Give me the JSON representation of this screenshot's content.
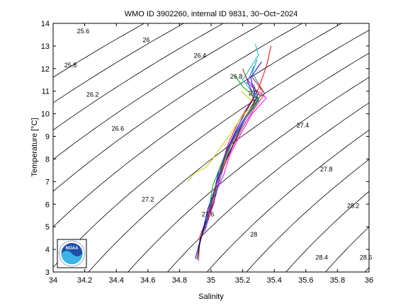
{
  "chart_data": {
    "type": "scatter",
    "title": "WMO ID 3902260, internal ID 9831, 30−Oct−2024",
    "xlabel": "Salinity",
    "ylabel": "Temperature [°C]",
    "xlim": [
      34,
      36
    ],
    "ylim": [
      3,
      14
    ],
    "x_ticks": [
      "34",
      "34.2",
      "34.4",
      "34.6",
      "34.8",
      "35",
      "35.2",
      "35.4",
      "35.6",
      "35.8",
      "36"
    ],
    "y_ticks": [
      "3",
      "4",
      "5",
      "6",
      "7",
      "8",
      "9",
      "10",
      "11",
      "12",
      "13",
      "14"
    ],
    "grid": false,
    "density_contours": {
      "levels": [
        25.6,
        25.8,
        26,
        26.2,
        26.4,
        26.6,
        26.8,
        27,
        27.2,
        27.4,
        27.6,
        27.8,
        28,
        28.2,
        28.4,
        28.6
      ],
      "labels": [
        {
          "text": "25.6",
          "s": 34.19,
          "t": 13.65
        },
        {
          "text": "25.8",
          "s": 34.11,
          "t": 12.15
        },
        {
          "text": "26",
          "s": 34.59,
          "t": 13.27
        },
        {
          "text": "26.2",
          "s": 34.25,
          "t": 10.85
        },
        {
          "text": "26.4",
          "s": 34.93,
          "t": 12.57
        },
        {
          "text": "26.6",
          "s": 34.41,
          "t": 9.35
        },
        {
          "text": "26.8",
          "s": 35.16,
          "t": 11.65
        },
        {
          "text": "27",
          "s": 35.26,
          "t": 10.91
        },
        {
          "text": "27.2",
          "s": 34.6,
          "t": 6.21
        },
        {
          "text": "27.4",
          "s": 35.58,
          "t": 9.48
        },
        {
          "text": "27.6",
          "s": 34.98,
          "t": 5.55
        },
        {
          "text": "27.8",
          "s": 35.73,
          "t": 7.54
        },
        {
          "text": "28",
          "s": 35.27,
          "t": 4.66
        },
        {
          "text": "28.2",
          "s": 35.9,
          "t": 5.93
        },
        {
          "text": "28.4",
          "s": 35.7,
          "t": 3.64
        },
        {
          "text": "28.6",
          "s": 35.98,
          "t": 3.64
        }
      ]
    },
    "series": [
      {
        "color": "#ff0000",
        "points": [
          [
            34.92,
            3.5
          ],
          [
            34.93,
            4.6
          ],
          [
            34.97,
            5.3
          ],
          [
            35.0,
            6.2
          ],
          [
            35.04,
            7.0
          ],
          [
            35.07,
            7.8
          ],
          [
            35.11,
            8.7
          ],
          [
            35.17,
            9.6
          ],
          [
            35.24,
            10.4
          ],
          [
            35.3,
            11.1
          ],
          [
            35.35,
            12.1
          ],
          [
            35.38,
            13.0
          ]
        ]
      },
      {
        "color": "#0000ff",
        "points": [
          [
            34.9,
            3.6
          ],
          [
            34.95,
            4.9
          ],
          [
            34.98,
            5.8
          ],
          [
            35.02,
            6.6
          ],
          [
            35.05,
            7.5
          ],
          [
            35.1,
            8.4
          ],
          [
            35.16,
            9.3
          ],
          [
            35.22,
            10.1
          ],
          [
            35.28,
            10.8
          ],
          [
            35.25,
            11.6
          ],
          [
            35.32,
            12.3
          ]
        ]
      },
      {
        "color": "#00aa00",
        "points": [
          [
            34.97,
            5.0
          ],
          [
            34.99,
            5.9
          ],
          [
            35.01,
            6.8
          ],
          [
            35.06,
            7.7
          ],
          [
            35.12,
            8.6
          ],
          [
            35.2,
            9.6
          ],
          [
            35.3,
            10.6
          ],
          [
            35.2,
            11.2
          ],
          [
            35.15,
            11.7
          ]
        ]
      },
      {
        "color": "#ff00ff",
        "points": [
          [
            34.96,
            4.8
          ],
          [
            35.0,
            5.7
          ],
          [
            35.03,
            6.5
          ],
          [
            35.08,
            7.3
          ],
          [
            35.12,
            8.2
          ],
          [
            35.18,
            9.0
          ],
          [
            35.26,
            10.0
          ],
          [
            35.35,
            10.7
          ],
          [
            35.22,
            11.4
          ]
        ]
      },
      {
        "color": "#00bfbf",
        "points": [
          [
            34.98,
            5.4
          ],
          [
            35.01,
            6.3
          ],
          [
            35.05,
            7.2
          ],
          [
            35.09,
            8.1
          ],
          [
            35.14,
            8.9
          ],
          [
            35.21,
            9.8
          ],
          [
            35.29,
            10.7
          ],
          [
            35.2,
            11.5
          ],
          [
            35.3,
            12.6
          ],
          [
            35.28,
            13.1
          ]
        ]
      },
      {
        "color": "#cccc00",
        "points": [
          [
            34.85,
            7.0
          ],
          [
            34.9,
            7.4
          ],
          [
            34.96,
            7.6
          ],
          [
            35.0,
            7.9
          ],
          [
            35.06,
            8.5
          ],
          [
            35.12,
            9.1
          ],
          [
            35.2,
            9.9
          ],
          [
            35.27,
            10.5
          ],
          [
            35.19,
            11.0
          ]
        ]
      },
      {
        "color": "#000000",
        "points": [
          [
            34.91,
            3.55
          ],
          [
            34.93,
            4.3
          ],
          [
            34.96,
            5.1
          ],
          [
            35.0,
            5.9
          ],
          [
            35.03,
            6.8
          ],
          [
            35.07,
            7.6
          ],
          [
            35.13,
            8.5
          ],
          [
            35.19,
            9.4
          ],
          [
            35.25,
            10.2
          ],
          [
            35.3,
            10.9
          ]
        ]
      },
      {
        "color": "#993300",
        "points": [
          [
            34.98,
            5.3
          ],
          [
            35.02,
            6.1
          ],
          [
            35.04,
            7.1
          ],
          [
            35.08,
            8.0
          ],
          [
            35.14,
            8.8
          ],
          [
            35.21,
            9.7
          ],
          [
            35.28,
            10.4
          ],
          [
            35.24,
            11.3
          ],
          [
            35.2,
            12.0
          ]
        ]
      },
      {
        "color": "#8800cc",
        "points": [
          [
            34.99,
            5.6
          ],
          [
            35.03,
            6.4
          ],
          [
            35.06,
            7.4
          ],
          [
            35.1,
            8.3
          ],
          [
            35.15,
            9.1
          ],
          [
            35.23,
            10.0
          ],
          [
            35.31,
            10.8
          ],
          [
            35.22,
            11.6
          ]
        ]
      },
      {
        "color": "#009999",
        "points": [
          [
            34.97,
            5.2
          ],
          [
            35.0,
            6.0
          ],
          [
            35.05,
            6.9
          ],
          [
            35.09,
            7.9
          ],
          [
            35.13,
            8.7
          ],
          [
            35.19,
            9.5
          ],
          [
            35.27,
            10.3
          ],
          [
            35.33,
            11.0
          ],
          [
            35.26,
            11.8
          ],
          [
            35.29,
            12.4
          ]
        ]
      },
      {
        "color": "#ff8800",
        "points": [
          [
            34.99,
            5.7
          ],
          [
            35.02,
            6.7
          ],
          [
            35.07,
            7.5
          ],
          [
            35.11,
            8.4
          ],
          [
            35.17,
            9.2
          ],
          [
            35.24,
            10.1
          ],
          [
            35.32,
            10.9
          ],
          [
            35.3,
            11.4
          ]
        ]
      },
      {
        "color": "#006600",
        "points": [
          [
            34.96,
            4.9
          ],
          [
            34.99,
            5.8
          ],
          [
            35.02,
            6.6
          ],
          [
            35.06,
            7.5
          ],
          [
            35.1,
            8.3
          ],
          [
            35.16,
            9.1
          ],
          [
            35.23,
            9.9
          ],
          [
            35.3,
            10.6
          ],
          [
            35.27,
            11.3
          ]
        ]
      },
      {
        "color": "#3366ff",
        "points": [
          [
            34.95,
            4.7
          ],
          [
            34.98,
            5.5
          ],
          [
            35.01,
            6.4
          ],
          [
            35.05,
            7.3
          ],
          [
            35.09,
            8.2
          ],
          [
            35.15,
            9.0
          ],
          [
            35.22,
            9.8
          ],
          [
            35.29,
            10.6
          ],
          [
            35.23,
            11.4
          ],
          [
            35.27,
            12.1
          ]
        ]
      },
      {
        "color": "#cc0066",
        "points": [
          [
            34.98,
            5.4
          ],
          [
            35.01,
            6.2
          ],
          [
            35.04,
            7.0
          ],
          [
            35.09,
            7.8
          ],
          [
            35.14,
            8.6
          ],
          [
            35.2,
            9.4
          ],
          [
            35.27,
            10.2
          ],
          [
            35.34,
            10.9
          ],
          [
            35.25,
            11.7
          ]
        ]
      }
    ]
  },
  "noaa_logo": {
    "text": "NOAA",
    "colors": {
      "sky": "#1f4fa8",
      "wave": "#3ab4e8",
      "ring": "#ffffff"
    }
  }
}
